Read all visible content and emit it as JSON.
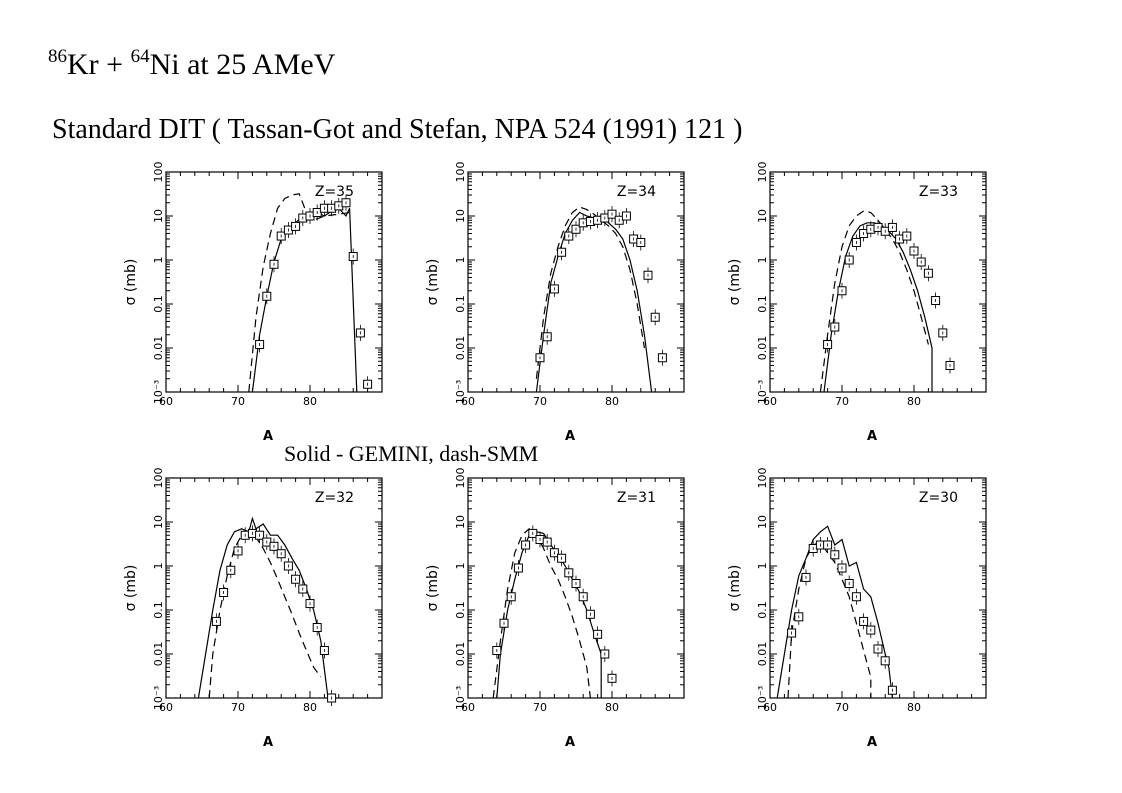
{
  "title": {
    "mass_a": "86",
    "elem_a": "Kr + ",
    "mass_b": "64",
    "elem_b": "Ni at 25 AMeV"
  },
  "subtitle": "Standard DIT ( Tassan-Got  and Stefan, NPA 524 (1991) 121 )",
  "legend_note": "Solid - GEMINI, dash-SMM",
  "chart_data": [
    {
      "type": "line",
      "panel_label": "Z=35",
      "xlabel": "A",
      "ylabel": "σ (mb)",
      "xlim": [
        60,
        90
      ],
      "ylim": [
        0.001,
        100
      ],
      "y_scale": "log",
      "x_ticks": [
        60,
        70,
        80
      ],
      "y_ticks": [
        "10⁻³",
        "0.01",
        "0.1",
        "1",
        "10",
        "100"
      ],
      "series": [
        {
          "style": "solid",
          "x": [
            72,
            73,
            74,
            75,
            76,
            77,
            78,
            79,
            80,
            81,
            82,
            83,
            84,
            85,
            85.5,
            86.5
          ],
          "y": [
            0.001,
            0.02,
            0.15,
            0.9,
            3,
            5,
            7,
            10,
            11,
            12,
            10,
            13,
            15,
            10,
            15,
            0.001
          ]
        },
        {
          "style": "dashed",
          "x": [
            71.5,
            72.5,
            73.5,
            74.5,
            75.5,
            76.5,
            77.5,
            78.5,
            79.5,
            80.5,
            82,
            84,
            85.5
          ],
          "y": [
            0.001,
            0.05,
            0.7,
            4,
            15,
            25,
            30,
            32,
            12,
            8,
            10,
            11,
            12
          ]
        },
        {
          "style": "markers",
          "x": [
            73,
            74,
            75,
            76,
            77,
            78,
            79,
            80,
            81,
            82,
            83,
            84,
            85,
            86,
            87,
            88
          ],
          "y": [
            0.012,
            0.15,
            0.8,
            3.5,
            4.8,
            5.8,
            9,
            10,
            12,
            15,
            15,
            17,
            20,
            1.2,
            0.022,
            0.0015
          ]
        }
      ]
    },
    {
      "type": "line",
      "panel_label": "Z=34",
      "xlabel": "A",
      "ylabel": "σ (mb)",
      "xlim": [
        60,
        90
      ],
      "ylim": [
        0.001,
        100
      ],
      "y_scale": "log",
      "x_ticks": [
        60,
        70,
        80
      ],
      "y_ticks": [
        "10⁻³",
        "0.01",
        "0.1",
        "1",
        "10",
        "100"
      ],
      "series": [
        {
          "style": "solid",
          "x": [
            69.5,
            70.5,
            71.5,
            72.5,
            73.5,
            74.5,
            75.5,
            76.5,
            77.5,
            78.5,
            79.5,
            80.5,
            81.5,
            82.5,
            83.5,
            84.5,
            85.5
          ],
          "y": [
            0.001,
            0.02,
            0.3,
            1.2,
            4,
            8,
            12,
            10,
            9,
            10,
            7,
            5,
            3,
            1,
            0.2,
            0.02,
            0.001
          ]
        },
        {
          "style": "dashed",
          "x": [
            69.5,
            70.5,
            71.5,
            72.5,
            73.5,
            74.5,
            75.5,
            76.5,
            77.5,
            78.5,
            79.5,
            80.5,
            81.5,
            82.5,
            83.5,
            84.5
          ],
          "y": [
            0.002,
            0.05,
            0.5,
            2,
            6,
            12,
            16,
            14,
            11,
            8,
            6,
            4,
            2,
            0.6,
            0.1,
            0.01
          ]
        },
        {
          "style": "markers",
          "x": [
            70,
            71,
            72,
            73,
            74,
            75,
            76,
            77,
            78,
            79,
            80,
            81,
            82,
            83,
            84,
            85,
            86,
            87
          ],
          "y": [
            0.006,
            0.018,
            0.22,
            1.5,
            3.5,
            5,
            7,
            7.5,
            8,
            9,
            11,
            8,
            10,
            3,
            2.5,
            0.45,
            0.05,
            0.006
          ]
        }
      ]
    },
    {
      "type": "line",
      "panel_label": "Z=33",
      "xlabel": "A",
      "ylabel": "σ (mb)",
      "xlim": [
        60,
        90
      ],
      "ylim": [
        0.001,
        100
      ],
      "y_scale": "log",
      "x_ticks": [
        60,
        70,
        80
      ],
      "y_ticks": [
        "10⁻³",
        "0.01",
        "0.1",
        "1",
        "10",
        "100"
      ],
      "series": [
        {
          "style": "solid",
          "x": [
            67.5,
            68.5,
            69.5,
            70.5,
            71.5,
            72.5,
            73.5,
            74.5,
            75.5,
            76.5,
            77.5,
            78.5,
            79.5,
            80.5,
            81.5,
            82.5,
            82.5
          ],
          "y": [
            0.001,
            0.02,
            0.2,
            1.2,
            3.5,
            6,
            7,
            7,
            6,
            4.5,
            3,
            1.5,
            0.6,
            0.2,
            0.05,
            0.01,
            0.001
          ]
        },
        {
          "style": "dashed",
          "x": [
            67,
            68,
            69,
            70,
            71,
            72,
            73,
            74,
            75,
            76,
            77,
            78,
            79,
            80,
            81,
            82
          ],
          "y": [
            0.001,
            0.02,
            0.3,
            2,
            6,
            10,
            13,
            12,
            8,
            5,
            3,
            1.5,
            0.6,
            0.2,
            0.05,
            0.012
          ]
        },
        {
          "style": "markers",
          "x": [
            68,
            69,
            70,
            71,
            72,
            73,
            74,
            75,
            76,
            77,
            78,
            79,
            80,
            81,
            82,
            83,
            84,
            85
          ],
          "y": [
            0.012,
            0.03,
            0.2,
            1,
            2.5,
            4,
            5,
            5.5,
            4.5,
            5.5,
            3,
            3.5,
            1.6,
            0.9,
            0.5,
            0.12,
            0.022,
            0.004
          ]
        }
      ]
    },
    {
      "type": "line",
      "panel_label": "Z=32",
      "xlabel": "A",
      "ylabel": "σ (mb)",
      "xlim": [
        60,
        90
      ],
      "ylim": [
        0.001,
        100
      ],
      "y_scale": "log",
      "x_ticks": [
        60,
        70,
        80
      ],
      "y_ticks": [
        "10⁻³",
        "0.01",
        "0.1",
        "1",
        "10",
        "100"
      ],
      "series": [
        {
          "style": "solid",
          "x": [
            64.5,
            65.5,
            66.5,
            67.5,
            68.5,
            69.5,
            70.5,
            71.5,
            72,
            72.5,
            73.5,
            74.5,
            75.5,
            76.5,
            77.5,
            78.5,
            79.5,
            80.5,
            81.5,
            82.5
          ],
          "y": [
            0.001,
            0.01,
            0.1,
            0.8,
            3,
            6,
            7,
            6,
            12,
            7,
            9,
            5,
            5,
            3,
            1.5,
            0.8,
            0.3,
            0.1,
            0.02,
            0.001
          ]
        },
        {
          "style": "dashed",
          "x": [
            66,
            66.5,
            67.5,
            68.5,
            69.5,
            70.5,
            71.5,
            72.5,
            73.5,
            74.5,
            75.5,
            76.5,
            77.5,
            78.5,
            79.5,
            80.5,
            81.5
          ],
          "y": [
            0.001,
            0.01,
            0.1,
            0.6,
            2.5,
            5,
            6,
            4.5,
            2.5,
            1.2,
            0.5,
            0.2,
            0.08,
            0.03,
            0.012,
            0.005,
            0.003
          ]
        },
        {
          "style": "markers",
          "x": [
            67,
            68,
            69,
            70,
            71,
            72,
            73,
            74,
            75,
            76,
            77,
            78,
            79,
            80,
            81,
            82,
            83
          ],
          "y": [
            0.055,
            0.25,
            0.8,
            2.2,
            5,
            5.5,
            5,
            3.5,
            2.8,
            1.9,
            1,
            0.5,
            0.3,
            0.14,
            0.04,
            0.012,
            0.001
          ]
        }
      ]
    },
    {
      "type": "line",
      "panel_label": "Z=31",
      "xlabel": "A",
      "ylabel": "σ (mb)",
      "xlim": [
        60,
        90
      ],
      "ylim": [
        0.001,
        100
      ],
      "y_scale": "log",
      "x_ticks": [
        60,
        70,
        80
      ],
      "y_ticks": [
        "10⁻³",
        "0.01",
        "0.1",
        "1",
        "10",
        "100"
      ],
      "series": [
        {
          "style": "solid",
          "x": [
            64,
            64.5,
            65.5,
            66.5,
            67.5,
            68.5,
            69.5,
            70.5,
            71.5,
            72.5,
            73.5,
            74.5,
            75.5,
            76.5,
            77.5,
            78.5,
            78.5
          ],
          "y": [
            0.001,
            0.01,
            0.1,
            0.5,
            2,
            5,
            6,
            5.5,
            3,
            1.8,
            1,
            0.5,
            0.25,
            0.1,
            0.03,
            0.01,
            0.001
          ]
        },
        {
          "style": "dashed",
          "x": [
            63.5,
            64.5,
            65.5,
            66.5,
            67.5,
            68.5,
            69.5,
            70.5,
            71.5,
            72.5,
            73.5,
            74.5,
            75.5,
            76.5,
            77
          ],
          "y": [
            0.001,
            0.02,
            0.3,
            2,
            5,
            7,
            5,
            2.5,
            1,
            0.5,
            0.2,
            0.07,
            0.02,
            0.005,
            0.001
          ]
        },
        {
          "style": "markers",
          "x": [
            64,
            65,
            66,
            67,
            68,
            69,
            70,
            71,
            72,
            73,
            74,
            75,
            76,
            77,
            78,
            79,
            80
          ],
          "y": [
            0.012,
            0.05,
            0.2,
            0.9,
            3,
            5.5,
            4,
            3.5,
            2,
            1.5,
            0.7,
            0.4,
            0.2,
            0.08,
            0.028,
            0.01,
            0.0028
          ]
        }
      ]
    },
    {
      "type": "line",
      "panel_label": "Z=30",
      "xlabel": "A",
      "ylabel": "σ (mb)",
      "xlim": [
        60,
        90
      ],
      "ylim": [
        0.001,
        100
      ],
      "y_scale": "log",
      "x_ticks": [
        60,
        70,
        80
      ],
      "y_ticks": [
        "10⁻³",
        "0.01",
        "0.1",
        "1",
        "10",
        "100"
      ],
      "series": [
        {
          "style": "solid",
          "x": [
            61,
            62,
            63,
            64,
            65,
            66,
            67,
            68,
            69,
            70,
            71,
            72,
            73,
            74,
            75,
            76,
            76.5,
            77
          ],
          "y": [
            0.001,
            0.01,
            0.1,
            0.6,
            1.5,
            4,
            6,
            8,
            3,
            4,
            1,
            1.2,
            0.3,
            0.2,
            0.05,
            0.01,
            0.005,
            0.001
          ]
        },
        {
          "style": "dashed",
          "x": [
            62.5,
            63,
            64,
            65,
            66,
            67,
            68,
            69,
            70,
            71,
            72,
            73,
            74,
            74
          ],
          "y": [
            0.001,
            0.03,
            0.3,
            1.5,
            3,
            3.5,
            2,
            1.2,
            0.5,
            0.2,
            0.05,
            0.012,
            0.003,
            0.001
          ]
        },
        {
          "style": "markers",
          "x": [
            63,
            64,
            65,
            66,
            67,
            68,
            69,
            70,
            71,
            72,
            73,
            74,
            75,
            76,
            77
          ],
          "y": [
            0.03,
            0.07,
            0.55,
            2.5,
            3,
            3,
            1.8,
            0.9,
            0.4,
            0.2,
            0.055,
            0.035,
            0.013,
            0.007,
            0.0015
          ]
        }
      ]
    }
  ]
}
